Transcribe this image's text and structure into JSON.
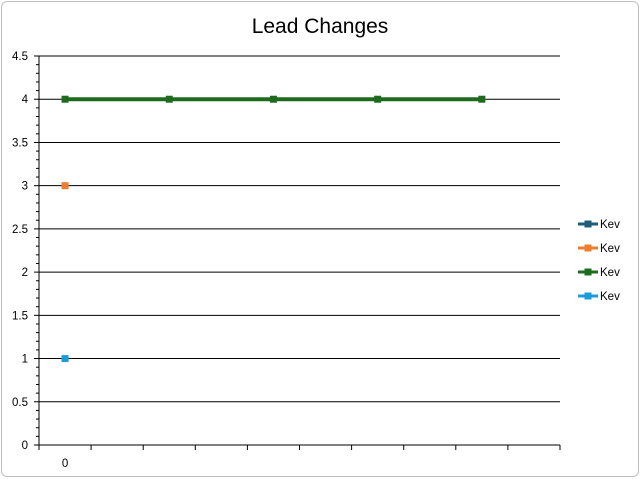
{
  "chart_data": {
    "type": "line",
    "title": "Lead Changes",
    "xlabel": "",
    "ylabel": "",
    "ylim": [
      0,
      4.5
    ],
    "y_major_step": 0.5,
    "y_minor_per_major": 5,
    "x_categories": [
      "0",
      "",
      "",
      "",
      "",
      "",
      "",
      "",
      "",
      ""
    ],
    "grid": true,
    "legend_position": "right",
    "series": [
      {
        "name": "Kev",
        "color": "#1f5c7a",
        "x": [],
        "values": []
      },
      {
        "name": "Kev",
        "color": "#ed7d31",
        "x": [
          0
        ],
        "values": [
          3
        ]
      },
      {
        "name": "Kev",
        "color": "#1e6b1e",
        "x": [
          0,
          2,
          4,
          6,
          8
        ],
        "values": [
          4,
          4,
          4,
          4,
          4
        ]
      },
      {
        "name": "Kev",
        "color": "#1b9ddb",
        "x": [
          0
        ],
        "values": [
          1
        ]
      }
    ]
  }
}
